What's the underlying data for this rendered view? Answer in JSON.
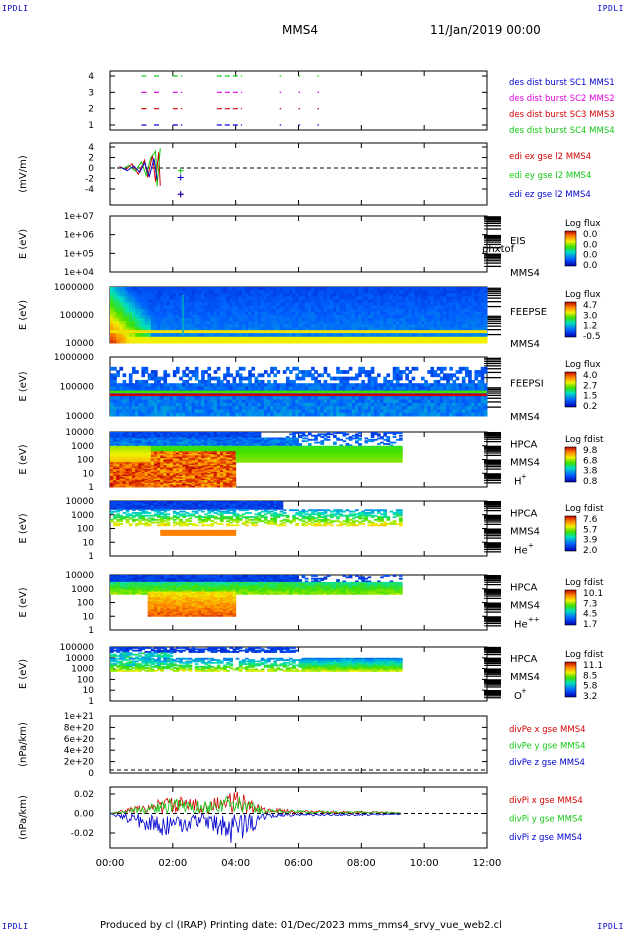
{
  "corners": {
    "tl": "IPDLI",
    "tr": "IPDLI",
    "bl": "IPDLI",
    "br": "IPDLI"
  },
  "header": {
    "spacecraft": "MMS4",
    "date": "11/Jan/2019 00:00"
  },
  "footer": {
    "text": "Produced by cl (IRAP)   Printing date: 01/Dec/2023   mms_mms4_srvy_vue_web2.cl"
  },
  "time_axis": {
    "ticks": [
      "00:00",
      "02:00",
      "04:00",
      "06:00",
      "08:00",
      "10:00",
      "12:00"
    ],
    "range_hours": [
      0,
      12
    ],
    "data_end_hours": 9.3
  },
  "colors": {
    "red": "#d40000",
    "green": "#14c814",
    "magenta": "#e000e0",
    "blue": "#0000d0"
  },
  "panels": [
    {
      "id": "des-burst",
      "ylabel": "",
      "yticks": [
        "4",
        "3",
        "2",
        "1"
      ],
      "legend": [
        {
          "text": "des dist burst SC1 MMS1",
          "color": "#0000d0"
        },
        {
          "text": "des dist burst SC2 MMS2",
          "color": "#e000e0"
        },
        {
          "text": "des dist burst SC3 MMS3",
          "color": "#d40000"
        },
        {
          "text": "des dist burst SC4 MMS4",
          "color": "#14c814"
        }
      ]
    },
    {
      "id": "edi",
      "ylabel": "(mV/m)",
      "yticks": [
        "4",
        "2",
        "0",
        "-2",
        "-4"
      ],
      "legend": [
        {
          "text": "edi ex gse l2 MMS4",
          "color": "#d40000"
        },
        {
          "text": "edi ey gse l2 MMS4",
          "color": "#14c814"
        },
        {
          "text": "edi ez gse l2 MMS4",
          "color": "#0000d0"
        }
      ]
    },
    {
      "id": "eis",
      "ylabel": "E (eV)",
      "yticks": [
        "1e+07",
        "1e+06",
        "1e+05",
        "1e+04"
      ],
      "instrument": "EIS",
      "sub": "MMS4",
      "extra": "phxtof",
      "cb_title": "Log flux",
      "cb_ticks": [
        "0.0",
        "0.0",
        "0.0",
        "0.0"
      ]
    },
    {
      "id": "feeps-e",
      "ylabel": "E (eV)",
      "yticks": [
        "1000000",
        "100000",
        "10000"
      ],
      "instrument": "FEEPSE",
      "sub": "MMS4",
      "cb_title": "Log flux",
      "cb_ticks": [
        "4.7",
        "3.0",
        "1.2",
        "-0.5"
      ]
    },
    {
      "id": "feeps-i",
      "ylabel": "E (eV)",
      "yticks": [
        "1000000",
        "100000",
        "10000"
      ],
      "instrument": "FEEPSI",
      "sub": "MMS4",
      "cb_title": "Log flux",
      "cb_ticks": [
        "4.0",
        "2.7",
        "1.5",
        "0.2"
      ]
    },
    {
      "id": "hpca-h",
      "ylabel": "E (eV)",
      "yticks": [
        "10000",
        "1000",
        "100",
        "10",
        "1"
      ],
      "instrument": "HPCA",
      "sub": "MMS4",
      "species": "H",
      "charge": "+",
      "cb_title": "Log fdist",
      "cb_ticks": [
        "9.8",
        "6.8",
        "3.8",
        "0.8"
      ]
    },
    {
      "id": "hpca-he",
      "ylabel": "E (eV)",
      "yticks": [
        "10000",
        "1000",
        "100",
        "10",
        "1"
      ],
      "instrument": "HPCA",
      "sub": "MMS4",
      "species": "He",
      "charge": "+",
      "cb_title": "Log fdist",
      "cb_ticks": [
        "7.6",
        "5.7",
        "3.9",
        "2.0"
      ]
    },
    {
      "id": "hpca-he2",
      "ylabel": "E (eV)",
      "yticks": [
        "10000",
        "1000",
        "100",
        "10",
        "1"
      ],
      "instrument": "HPCA",
      "sub": "MMS4",
      "species": "He",
      "charge": "++",
      "cb_title": "Log fdist",
      "cb_ticks": [
        "10.1",
        "7.3",
        "4.5",
        "1.7"
      ]
    },
    {
      "id": "hpca-o",
      "ylabel": "E (eV)",
      "yticks": [
        "100000",
        "10000",
        "1000",
        "100",
        "10",
        "1"
      ],
      "instrument": "HPCA",
      "sub": "MMS4",
      "species": "O",
      "charge": "+",
      "cb_title": "Log fdist",
      "cb_ticks": [
        "11.1",
        "8.5",
        "5.8",
        "3.2"
      ]
    },
    {
      "id": "divpe",
      "ylabel": "(nPa/km)",
      "yticks": [
        "1e+21",
        "8e+20",
        "6e+20",
        "4e+20",
        "2e+20",
        "0"
      ],
      "legend": [
        {
          "text": "divPe x gse MMS4",
          "color": "#d40000"
        },
        {
          "text": "divPe y gse MMS4",
          "color": "#14c814"
        },
        {
          "text": "divPe z gse MMS4",
          "color": "#0000d0"
        }
      ]
    },
    {
      "id": "divpi",
      "ylabel": "(nPa/km)",
      "yticks": [
        "0.02",
        "0.00",
        "-0.02"
      ],
      "legend": [
        {
          "text": "divPi x gse MMS4",
          "color": "#d40000"
        },
        {
          "text": "divPi y gse MMS4",
          "color": "#14c814"
        },
        {
          "text": "divPi z gse MMS4",
          "color": "#0000d0"
        }
      ]
    }
  ],
  "chart_data": [
    {
      "type": "line",
      "title": "des dist burst availability",
      "series": [
        {
          "name": "des dist burst SC1 MMS1",
          "y": 1,
          "intervals_hours": [
            [
              1.0,
              1.2
            ],
            [
              1.4,
              1.6
            ],
            [
              2.0,
              2.3
            ],
            [
              3.4,
              4.2
            ],
            [
              5.4,
              5.45
            ],
            [
              6.0,
              6.05
            ],
            [
              6.6,
              6.65
            ]
          ]
        },
        {
          "name": "des dist burst SC2 MMS2",
          "y": 3,
          "intervals_hours": [
            [
              1.0,
              1.2
            ],
            [
              1.4,
              1.6
            ],
            [
              2.0,
              2.3
            ],
            [
              3.4,
              4.2
            ],
            [
              5.4,
              5.45
            ],
            [
              6.0,
              6.05
            ],
            [
              6.6,
              6.65
            ]
          ]
        },
        {
          "name": "des dist burst SC3 MMS3",
          "y": 2,
          "intervals_hours": [
            [
              1.0,
              1.2
            ],
            [
              1.4,
              1.6
            ],
            [
              2.0,
              2.3
            ],
            [
              3.4,
              4.2
            ],
            [
              5.4,
              5.45
            ],
            [
              6.0,
              6.05
            ],
            [
              6.6,
              6.65
            ]
          ]
        },
        {
          "name": "des dist burst SC4 MMS4",
          "y": 4,
          "intervals_hours": [
            [
              1.0,
              1.2
            ],
            [
              1.4,
              1.6
            ],
            [
              2.0,
              2.3
            ],
            [
              3.4,
              4.2
            ],
            [
              5.4,
              5.45
            ],
            [
              6.0,
              6.05
            ],
            [
              6.6,
              6.65
            ]
          ]
        }
      ],
      "ylim": [
        0.5,
        4.5
      ]
    },
    {
      "type": "scatter",
      "ylabel": "(mV/m)",
      "ylim": [
        -6,
        4.5
      ],
      "series": [
        {
          "name": "edi ex gse l2 MMS4",
          "points": [
            [
              0.3,
              0.3
            ],
            [
              0.5,
              -0.3
            ],
            [
              0.7,
              0.8
            ],
            [
              0.9,
              -1.2
            ],
            [
              1.1,
              1.5
            ],
            [
              1.2,
              -1.8
            ],
            [
              1.35,
              2.5
            ],
            [
              1.45,
              -2.6
            ],
            [
              1.55,
              3.0
            ],
            [
              1.6,
              -3.4
            ],
            [
              2.25,
              -5.0
            ]
          ]
        },
        {
          "name": "edi ey gse l2 MMS4",
          "points": [
            [
              0.4,
              -0.2
            ],
            [
              0.6,
              0.5
            ],
            [
              0.8,
              -0.6
            ],
            [
              1.0,
              1.2
            ],
            [
              1.15,
              -1.4
            ],
            [
              1.3,
              2.0
            ],
            [
              1.45,
              3.2
            ],
            [
              1.5,
              -3.5
            ],
            [
              1.6,
              3.8
            ],
            [
              2.25,
              -0.5
            ]
          ]
        },
        {
          "name": "edi ez gse l2 MMS4",
          "points": [
            [
              0.35,
              0.1
            ],
            [
              0.55,
              -0.5
            ],
            [
              0.75,
              0.4
            ],
            [
              0.95,
              -0.8
            ],
            [
              1.1,
              1.0
            ],
            [
              1.25,
              -1.6
            ],
            [
              1.4,
              1.8
            ],
            [
              1.5,
              -2.2
            ],
            [
              2.25,
              -1.8
            ],
            [
              2.25,
              -5.0
            ]
          ]
        }
      ]
    },
    {
      "type": "heatmap",
      "name": "EIS",
      "ylabel": "E (eV)",
      "ylim": [
        10000.0,
        10000000.0
      ],
      "log_y": true,
      "z": "empty"
    },
    {
      "type": "heatmap",
      "name": "FEEPSE",
      "ylabel": "E (eV)",
      "ylim": [
        10000.0,
        1000000.0
      ],
      "log_y": true,
      "zlim": [
        -0.5,
        4.7
      ],
      "zlabel": "Log flux"
    },
    {
      "type": "heatmap",
      "name": "FEEPSI",
      "ylabel": "E (eV)",
      "ylim": [
        10000.0,
        1000000.0
      ],
      "log_y": true,
      "zlim": [
        0.2,
        4.0
      ],
      "zlabel": "Log flux"
    },
    {
      "type": "heatmap",
      "name": "HPCA H+",
      "ylabel": "E (eV)",
      "ylim": [
        1,
        10000.0
      ],
      "log_y": true,
      "zlim": [
        0.8,
        9.8
      ],
      "zlabel": "Log fdist"
    },
    {
      "type": "heatmap",
      "name": "HPCA He+",
      "ylabel": "E (eV)",
      "ylim": [
        1,
        10000.0
      ],
      "log_y": true,
      "zlim": [
        2.0,
        7.6
      ],
      "zlabel": "Log fdist"
    },
    {
      "type": "heatmap",
      "name": "HPCA He++",
      "ylabel": "E (eV)",
      "ylim": [
        1,
        10000.0
      ],
      "log_y": true,
      "zlim": [
        1.7,
        10.1
      ],
      "zlabel": "Log fdist"
    },
    {
      "type": "heatmap",
      "name": "HPCA O+",
      "ylabel": "E (eV)",
      "ylim": [
        1,
        100000.0
      ],
      "log_y": true,
      "zlim": [
        3.2,
        11.1
      ],
      "zlabel": "Log fdist"
    },
    {
      "type": "line",
      "ylabel": "(nPa/km)",
      "ylim": [
        0,
        1e+21
      ],
      "series": [
        {
          "name": "divPe x gse MMS4",
          "values": []
        },
        {
          "name": "divPe y gse MMS4",
          "values": []
        },
        {
          "name": "divPe z gse MMS4",
          "values": []
        }
      ]
    },
    {
      "type": "line",
      "ylabel": "(nPa/km)",
      "ylim": [
        -0.03,
        0.03
      ],
      "series": [
        {
          "name": "divPi x gse MMS4",
          "x": [
            0.0,
            1.5,
            2.0,
            3.0,
            4.0,
            5.0,
            6.0,
            7.0,
            8.0,
            9.3
          ],
          "y": [
            0.0,
            0.012,
            0.015,
            0.012,
            0.02,
            0.005,
            0.003,
            0.002,
            0.002,
            0.001
          ]
        },
        {
          "name": "divPi y gse MMS4",
          "x": [
            0.0,
            1.5,
            2.0,
            3.0,
            4.0,
            5.0,
            6.0,
            7.0,
            8.0,
            9.3
          ],
          "y": [
            0.0,
            0.01,
            0.013,
            0.011,
            0.016,
            0.004,
            0.003,
            0.002,
            0.002,
            0.001
          ]
        },
        {
          "name": "divPi z gse MMS4",
          "x": [
            0.0,
            1.5,
            2.0,
            3.0,
            4.0,
            5.0,
            6.0,
            7.0,
            8.0,
            9.3
          ],
          "y": [
            0.0,
            -0.02,
            -0.018,
            -0.012,
            -0.03,
            -0.004,
            -0.002,
            -0.002,
            -0.002,
            -0.001
          ]
        }
      ]
    }
  ]
}
